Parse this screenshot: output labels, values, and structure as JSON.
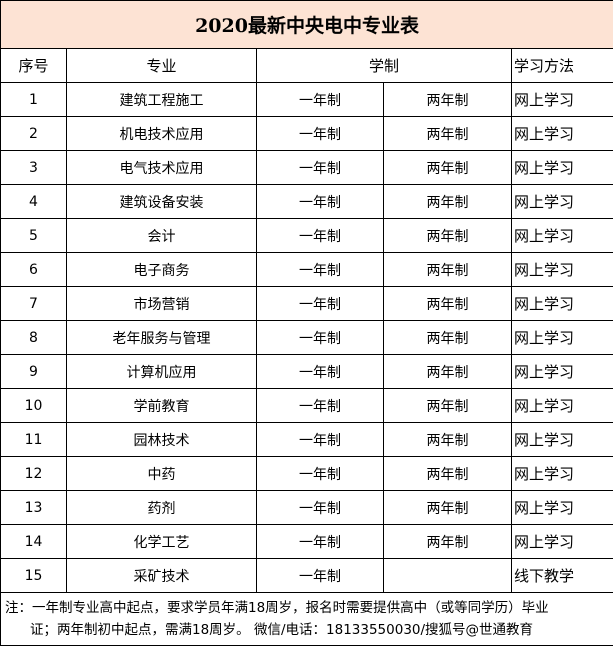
{
  "title": "2020最新中央电中专业表",
  "headers": {
    "index": "序号",
    "major": "专业",
    "duration": "学制",
    "method": "学习方法"
  },
  "rows": [
    {
      "n": "1",
      "major": "建筑工程施工",
      "one": "一年制",
      "two": "两年制",
      "method": "网上学习"
    },
    {
      "n": "2",
      "major": "机电技术应用",
      "one": "一年制",
      "two": "两年制",
      "method": "网上学习"
    },
    {
      "n": "3",
      "major": "电气技术应用",
      "one": "一年制",
      "two": "两年制",
      "method": "网上学习"
    },
    {
      "n": "4",
      "major": "建筑设备安装",
      "one": "一年制",
      "two": "两年制",
      "method": "网上学习"
    },
    {
      "n": "5",
      "major": "会计",
      "one": "一年制",
      "two": "两年制",
      "method": "网上学习"
    },
    {
      "n": "6",
      "major": "电子商务",
      "one": "一年制",
      "two": "两年制",
      "method": "网上学习"
    },
    {
      "n": "7",
      "major": "市场营销",
      "one": "一年制",
      "two": "两年制",
      "method": "网上学习"
    },
    {
      "n": "8",
      "major": "老年服务与管理",
      "one": "一年制",
      "two": "两年制",
      "method": "网上学习"
    },
    {
      "n": "9",
      "major": "计算机应用",
      "one": "一年制",
      "two": "两年制",
      "method": "网上学习"
    },
    {
      "n": "10",
      "major": "学前教育",
      "one": "一年制",
      "two": "两年制",
      "method": "网上学习"
    },
    {
      "n": "11",
      "major": "园林技术",
      "one": "一年制",
      "two": "两年制",
      "method": "网上学习"
    },
    {
      "n": "12",
      "major": "中药",
      "one": "一年制",
      "two": "两年制",
      "method": "网上学习"
    },
    {
      "n": "13",
      "major": "药剂",
      "one": "一年制",
      "two": "两年制",
      "method": "网上学习"
    },
    {
      "n": "14",
      "major": "化学工艺",
      "one": "一年制",
      "two": "两年制",
      "method": "网上学习"
    },
    {
      "n": "15",
      "major": "采矿技术",
      "one": "一年制",
      "two": "",
      "method": "线下教学"
    }
  ],
  "note": {
    "line1": "注：一年制专业高中起点，要求学员年满18周岁，报名时需要提供高中（或等同学历）毕业",
    "line2": "证；两年制初中起点，需满18周岁。 微信/电话：18133550030/搜狐号@世通教育"
  },
  "colors": {
    "title_bg": "#fde3d4"
  }
}
